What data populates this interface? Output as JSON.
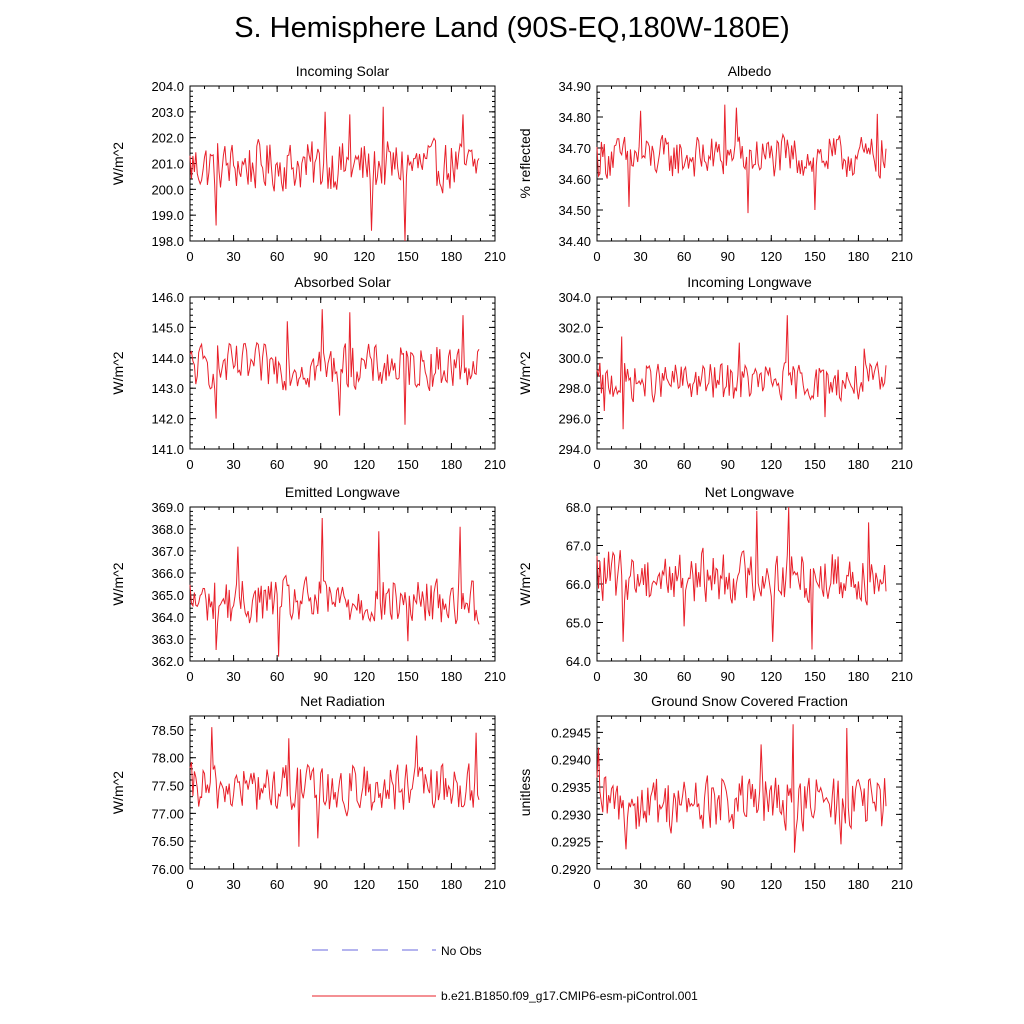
{
  "figure": {
    "title": "S. Hemisphere Land (90S-EQ,180W-180E)",
    "legend": [
      {
        "label": "No Obs",
        "color": "#6a6adf",
        "style": "dashed"
      },
      {
        "label": "b.e21.B1850.f09_g17.CMIP6-esm-piControl.001",
        "color": "#e8202a",
        "style": "solid"
      }
    ]
  },
  "chart_data": [
    {
      "type": "line",
      "title": "Incoming Solar",
      "ylabel": "W/m^2",
      "xlim": [
        0,
        210
      ],
      "xticks": [
        "0",
        "30",
        "60",
        "90",
        "120",
        "150",
        "180",
        "210"
      ],
      "ylim": [
        198.0,
        204.0
      ],
      "yticks": [
        "198.0",
        "199.0",
        "200.0",
        "201.0",
        "202.0",
        "203.0",
        "204.0"
      ],
      "n_points": 200,
      "mean": 200.9,
      "amplitude": 0.85,
      "extremes": [
        [
          93,
          203.0
        ],
        [
          133,
          203.2
        ],
        [
          110,
          202.9
        ],
        [
          148,
          198.0
        ],
        [
          125,
          198.4
        ],
        [
          18,
          198.6
        ],
        [
          188,
          202.9
        ]
      ],
      "series_name": "b.e21.B1850.f09_g17.CMIP6-esm-piControl.001",
      "color": "#e8202a"
    },
    {
      "type": "line",
      "title": "Albedo",
      "ylabel": "% reflected",
      "xlim": [
        0,
        210
      ],
      "xticks": [
        "0",
        "30",
        "60",
        "90",
        "120",
        "150",
        "180",
        "210"
      ],
      "ylim": [
        34.4,
        34.9
      ],
      "yticks": [
        "34.40",
        "34.50",
        "34.60",
        "34.70",
        "34.80",
        "34.90"
      ],
      "n_points": 200,
      "mean": 34.67,
      "amplitude": 0.06,
      "extremes": [
        [
          88,
          34.84
        ],
        [
          96,
          34.83
        ],
        [
          30,
          34.82
        ],
        [
          104,
          34.49
        ],
        [
          150,
          34.5
        ],
        [
          22,
          34.51
        ],
        [
          193,
          34.81
        ]
      ],
      "series_name": "b.e21.B1850.f09_g17.CMIP6-esm-piControl.001",
      "color": "#e8202a"
    },
    {
      "type": "line",
      "title": "Absorbed Solar",
      "ylabel": "W/m^2",
      "xlim": [
        0,
        210
      ],
      "xticks": [
        "0",
        "30",
        "60",
        "90",
        "120",
        "150",
        "180",
        "210"
      ],
      "ylim": [
        141.0,
        146.0
      ],
      "yticks": [
        "141.0",
        "142.0",
        "143.0",
        "144.0",
        "145.0",
        "146.0"
      ],
      "n_points": 200,
      "mean": 143.7,
      "amplitude": 0.65,
      "extremes": [
        [
          91,
          145.6
        ],
        [
          110,
          145.5
        ],
        [
          188,
          145.4
        ],
        [
          148,
          141.8
        ],
        [
          18,
          142.0
        ],
        [
          103,
          142.1
        ],
        [
          67,
          145.2
        ]
      ],
      "series_name": "b.e21.B1850.f09_g17.CMIP6-esm-piControl.001",
      "color": "#e8202a"
    },
    {
      "type": "line",
      "title": "Incoming Longwave",
      "ylabel": "W/m^2",
      "xlim": [
        0,
        210
      ],
      "xticks": [
        "0",
        "30",
        "60",
        "90",
        "120",
        "150",
        "180",
        "210"
      ],
      "ylim": [
        294.0,
        304.0
      ],
      "yticks": [
        "294.0",
        "296.0",
        "298.0",
        "300.0",
        "302.0",
        "304.0"
      ],
      "n_points": 200,
      "mean": 298.4,
      "amplitude": 1.1,
      "extremes": [
        [
          131,
          302.8
        ],
        [
          18,
          295.3
        ],
        [
          157,
          296.1
        ],
        [
          184,
          300.6
        ],
        [
          17,
          301.4
        ],
        [
          98,
          301.0
        ],
        [
          5,
          296.5
        ]
      ],
      "series_name": "b.e21.B1850.f09_g17.CMIP6-esm-piControl.001",
      "color": "#e8202a"
    },
    {
      "type": "line",
      "title": "Emitted Longwave",
      "ylabel": "W/m^2",
      "xlim": [
        0,
        210
      ],
      "xticks": [
        "0",
        "30",
        "60",
        "90",
        "120",
        "150",
        "180",
        "210"
      ],
      "ylim": [
        362.0,
        369.0
      ],
      "yticks": [
        "362.0",
        "363.0",
        "364.0",
        "365.0",
        "366.0",
        "367.0",
        "368.0",
        "369.0"
      ],
      "n_points": 200,
      "mean": 364.7,
      "amplitude": 0.95,
      "extremes": [
        [
          91,
          368.5
        ],
        [
          186,
          368.1
        ],
        [
          61,
          362.2
        ],
        [
          18,
          362.5
        ],
        [
          130,
          367.9
        ],
        [
          33,
          367.2
        ],
        [
          150,
          362.9
        ]
      ],
      "series_name": "b.e21.B1850.f09_g17.CMIP6-esm-piControl.001",
      "color": "#e8202a"
    },
    {
      "type": "line",
      "title": "Net Longwave",
      "ylabel": "W/m^2",
      "xlim": [
        0,
        210
      ],
      "xticks": [
        "0",
        "30",
        "60",
        "90",
        "120",
        "150",
        "180",
        "210"
      ],
      "ylim": [
        64.0,
        68.0
      ],
      "yticks": [
        "64.0",
        "65.0",
        "66.0",
        "67.0",
        "68.0"
      ],
      "n_points": 200,
      "mean": 66.2,
      "amplitude": 0.6,
      "extremes": [
        [
          132,
          68.0
        ],
        [
          110,
          67.9
        ],
        [
          148,
          64.3
        ],
        [
          18,
          64.5
        ],
        [
          121,
          64.5
        ],
        [
          187,
          67.6
        ],
        [
          60,
          64.9
        ]
      ],
      "series_name": "b.e21.B1850.f09_g17.CMIP6-esm-piControl.001",
      "color": "#e8202a"
    },
    {
      "type": "line",
      "title": "Net Radiation",
      "ylabel": "W/m^2",
      "xlim": [
        0,
        210
      ],
      "xticks": [
        "0",
        "30",
        "60",
        "90",
        "120",
        "150",
        "180",
        "210"
      ],
      "ylim": [
        76.0,
        78.75
      ],
      "yticks": [
        "76.00",
        "76.50",
        "77.00",
        "77.50",
        "78.00",
        "78.50"
      ],
      "n_points": 200,
      "mean": 77.45,
      "amplitude": 0.38,
      "extremes": [
        [
          15,
          78.55
        ],
        [
          197,
          78.45
        ],
        [
          75,
          76.4
        ],
        [
          88,
          76.55
        ],
        [
          68,
          78.35
        ],
        [
          156,
          78.4
        ],
        [
          108,
          76.95
        ]
      ],
      "series_name": "b.e21.B1850.f09_g17.CMIP6-esm-piControl.001",
      "color": "#e8202a"
    },
    {
      "type": "line",
      "title": "Ground Snow Covered Fraction",
      "ylabel": "unitless",
      "xlim": [
        0,
        210
      ],
      "xticks": [
        "0",
        "30",
        "60",
        "90",
        "120",
        "150",
        "180",
        "210"
      ],
      "ylim": [
        0.292,
        0.2948
      ],
      "yticks": [
        "0.2920",
        "0.2925",
        "0.2930",
        "0.2935",
        "0.2940",
        "0.2945"
      ],
      "n_points": 200,
      "mean": 0.2932,
      "amplitude": 0.00045,
      "extremes": [
        [
          135,
          0.29465
        ],
        [
          172,
          0.29458
        ],
        [
          1,
          0.29422
        ],
        [
          136,
          0.2923
        ],
        [
          20,
          0.29236
        ],
        [
          113,
          0.29428
        ],
        [
          168,
          0.29245
        ]
      ],
      "series_name": "b.e21.B1850.f09_g17.CMIP6-esm-piControl.001",
      "color": "#e8202a"
    }
  ]
}
